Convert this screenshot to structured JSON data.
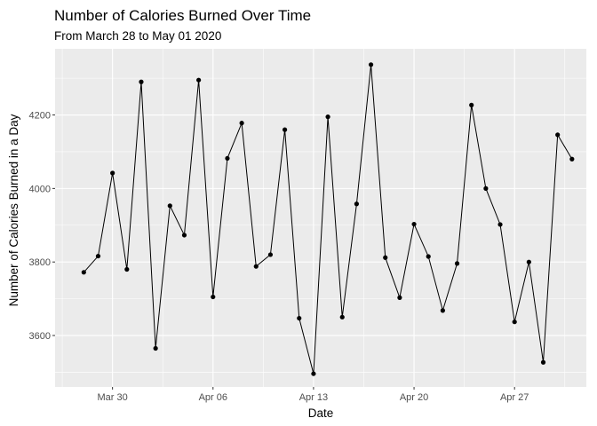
{
  "chart_data": {
    "type": "line",
    "title": "Number of Calories Burned Over Time",
    "subtitle": "From March 28 to May 01 2020",
    "xlabel": "Date",
    "ylabel": "Number of Calories Burned in a Day",
    "x": [
      "2020-03-28",
      "2020-03-29",
      "2020-03-30",
      "2020-03-31",
      "2020-04-01",
      "2020-04-02",
      "2020-04-03",
      "2020-04-04",
      "2020-04-05",
      "2020-04-06",
      "2020-04-07",
      "2020-04-08",
      "2020-04-09",
      "2020-04-10",
      "2020-04-11",
      "2020-04-12",
      "2020-04-13",
      "2020-04-14",
      "2020-04-15",
      "2020-04-16",
      "2020-04-17",
      "2020-04-18",
      "2020-04-19",
      "2020-04-20",
      "2020-04-21",
      "2020-04-22",
      "2020-04-23",
      "2020-04-24",
      "2020-04-25",
      "2020-04-26",
      "2020-04-27",
      "2020-04-28",
      "2020-04-29",
      "2020-04-30",
      "2020-05-01"
    ],
    "values": [
      3772,
      3816,
      4042,
      3780,
      4290,
      3565,
      3953,
      3873,
      4295,
      3705,
      4082,
      4178,
      3788,
      3820,
      4160,
      3647,
      3496,
      4195,
      3650,
      3958,
      4337,
      3812,
      3703,
      3903,
      3815,
      3668,
      3796,
      4227,
      4000,
      3902,
      3637,
      3800,
      3527,
      4146,
      4080
    ],
    "x_ticks": [
      {
        "date": "2020-03-30",
        "label": "Mar 30"
      },
      {
        "date": "2020-04-06",
        "label": "Apr 06"
      },
      {
        "date": "2020-04-13",
        "label": "Apr 13"
      },
      {
        "date": "2020-04-20",
        "label": "Apr 20"
      },
      {
        "date": "2020-04-27",
        "label": "Apr 27"
      }
    ],
    "y_ticks": [
      3600,
      3800,
      4000,
      4200
    ],
    "ylim": [
      3460,
      4380
    ],
    "xlim": [
      "2020-03-26",
      "2020-05-02"
    ],
    "grid": true,
    "colors": {
      "panel_background": "#ebebeb",
      "grid_major": "#ffffff",
      "line": "#000000",
      "point": "#000000",
      "tick_label": "#4d4d4d"
    }
  }
}
